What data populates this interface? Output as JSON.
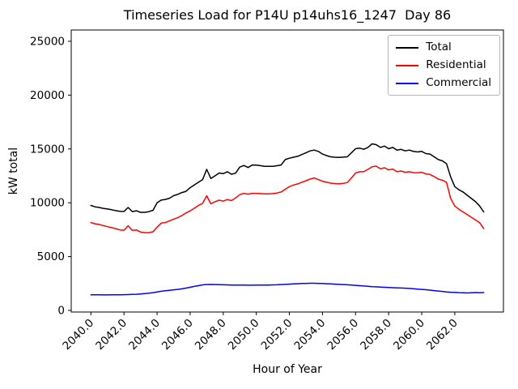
{
  "window": {
    "background": "#ffffff"
  },
  "chart_data": {
    "type": "line",
    "title": "Timeseries Load for P14U p14uhs16_1247  Day 86",
    "xlabel": "Hour of Year",
    "ylabel": "kW total",
    "xlim": [
      2038.81,
      2064.94
    ],
    "ylim": [
      -150,
      26050
    ],
    "grid": false,
    "legend_position": "upper right",
    "legend_border_color": "#b7b7b7",
    "axis_color": "#000000",
    "xticks": [
      2040.0,
      2042.0,
      2044.0,
      2046.0,
      2048.0,
      2050.0,
      2052.0,
      2054.0,
      2056.0,
      2058.0,
      2060.0,
      2062.0
    ],
    "xtick_labels": [
      "2040.0",
      "2042.0",
      "2044.0",
      "2046.0",
      "2048.0",
      "2050.0",
      "2052.0",
      "2054.0",
      "2056.0",
      "2058.0",
      "2060.0",
      "2062.0"
    ],
    "xtick_label_rotation": 45,
    "yticks": [
      0,
      5000,
      10000,
      15000,
      20000,
      25000
    ],
    "ytick_labels": [
      "0",
      "5000",
      "10000",
      "15000",
      "20000",
      "25000"
    ],
    "x": [
      2040.0,
      2040.25,
      2040.5,
      2040.75,
      2041.0,
      2041.25,
      2041.5,
      2041.75,
      2042.0,
      2042.25,
      2042.5,
      2042.75,
      2043.0,
      2043.25,
      2043.5,
      2043.75,
      2044.0,
      2044.25,
      2044.5,
      2044.75,
      2045.0,
      2045.25,
      2045.5,
      2045.75,
      2046.0,
      2046.25,
      2046.5,
      2046.75,
      2047.0,
      2047.25,
      2047.5,
      2047.75,
      2048.0,
      2048.25,
      2048.5,
      2048.75,
      2049.0,
      2049.25,
      2049.5,
      2049.75,
      2050.0,
      2050.25,
      2050.5,
      2050.75,
      2051.0,
      2051.25,
      2051.5,
      2051.75,
      2052.0,
      2052.25,
      2052.5,
      2052.75,
      2053.0,
      2053.25,
      2053.5,
      2053.75,
      2054.0,
      2054.25,
      2054.5,
      2054.75,
      2055.0,
      2055.25,
      2055.5,
      2055.75,
      2056.0,
      2056.25,
      2056.5,
      2056.75,
      2057.0,
      2057.25,
      2057.5,
      2057.75,
      2058.0,
      2058.25,
      2058.5,
      2058.75,
      2059.0,
      2059.25,
      2059.5,
      2059.75,
      2060.0,
      2060.25,
      2060.5,
      2060.75,
      2061.0,
      2061.25,
      2061.5,
      2061.75,
      2062.0,
      2062.25,
      2062.5,
      2062.75,
      2063.0,
      2063.25,
      2063.5,
      2063.75
    ],
    "series": [
      {
        "name": "Total",
        "color": "#000000",
        "values": [
          9750,
          9620,
          9560,
          9480,
          9420,
          9350,
          9270,
          9210,
          9190,
          9560,
          9180,
          9250,
          9110,
          9110,
          9170,
          9300,
          9990,
          10250,
          10310,
          10420,
          10650,
          10780,
          10950,
          11060,
          11400,
          11650,
          11900,
          12150,
          13100,
          12260,
          12500,
          12760,
          12700,
          12880,
          12650,
          12750,
          13310,
          13460,
          13270,
          13510,
          13500,
          13450,
          13390,
          13390,
          13390,
          13440,
          13510,
          14010,
          14140,
          14230,
          14310,
          14480,
          14640,
          14820,
          14890,
          14770,
          14520,
          14380,
          14270,
          14230,
          14210,
          14240,
          14270,
          14640,
          15020,
          15070,
          14970,
          15140,
          15470,
          15400,
          15140,
          15270,
          15020,
          15140,
          14890,
          14960,
          14820,
          14890,
          14770,
          14720,
          14770,
          14570,
          14520,
          14270,
          14010,
          13890,
          13630,
          12400,
          11500,
          11200,
          11000,
          10700,
          10400,
          10100,
          9700,
          9150
        ]
      },
      {
        "name": "Residential",
        "color": "#ff0000",
        "values": [
          8160,
          8050,
          7980,
          7880,
          7780,
          7690,
          7600,
          7480,
          7450,
          7860,
          7430,
          7480,
          7280,
          7220,
          7220,
          7300,
          7730,
          8110,
          8160,
          8310,
          8480,
          8610,
          8810,
          9060,
          9240,
          9490,
          9740,
          9940,
          10650,
          9900,
          10100,
          10240,
          10150,
          10300,
          10200,
          10450,
          10750,
          10870,
          10800,
          10870,
          10870,
          10850,
          10820,
          10820,
          10850,
          10900,
          11000,
          11245,
          11500,
          11650,
          11750,
          11900,
          12050,
          12200,
          12300,
          12150,
          12000,
          11900,
          11820,
          11780,
          11750,
          11800,
          11870,
          12300,
          12760,
          12880,
          12880,
          13100,
          13350,
          13400,
          13150,
          13250,
          13050,
          13130,
          12880,
          12950,
          12830,
          12880,
          12800,
          12780,
          12830,
          12680,
          12630,
          12430,
          12200,
          12100,
          11900,
          10400,
          9700,
          9400,
          9150,
          8900,
          8650,
          8400,
          8150,
          7600
        ]
      },
      {
        "name": "Commercial",
        "color": "#0000ff",
        "values": [
          1450,
          1450,
          1445,
          1440,
          1440,
          1445,
          1450,
          1455,
          1460,
          1470,
          1480,
          1500,
          1530,
          1560,
          1600,
          1650,
          1720,
          1780,
          1830,
          1870,
          1910,
          1950,
          2000,
          2070,
          2150,
          2230,
          2300,
          2370,
          2400,
          2410,
          2400,
          2390,
          2380,
          2370,
          2360,
          2355,
          2350,
          2350,
          2345,
          2345,
          2350,
          2350,
          2355,
          2360,
          2370,
          2380,
          2400,
          2420,
          2440,
          2460,
          2480,
          2500,
          2510,
          2520,
          2520,
          2510,
          2500,
          2480,
          2460,
          2440,
          2420,
          2400,
          2380,
          2360,
          2330,
          2300,
          2270,
          2240,
          2210,
          2190,
          2170,
          2150,
          2130,
          2110,
          2090,
          2080,
          2060,
          2040,
          2010,
          1980,
          1950,
          1920,
          1880,
          1840,
          1800,
          1760,
          1720,
          1690,
          1670,
          1650,
          1640,
          1620,
          1640,
          1660,
          1640,
          1660
        ]
      }
    ]
  }
}
